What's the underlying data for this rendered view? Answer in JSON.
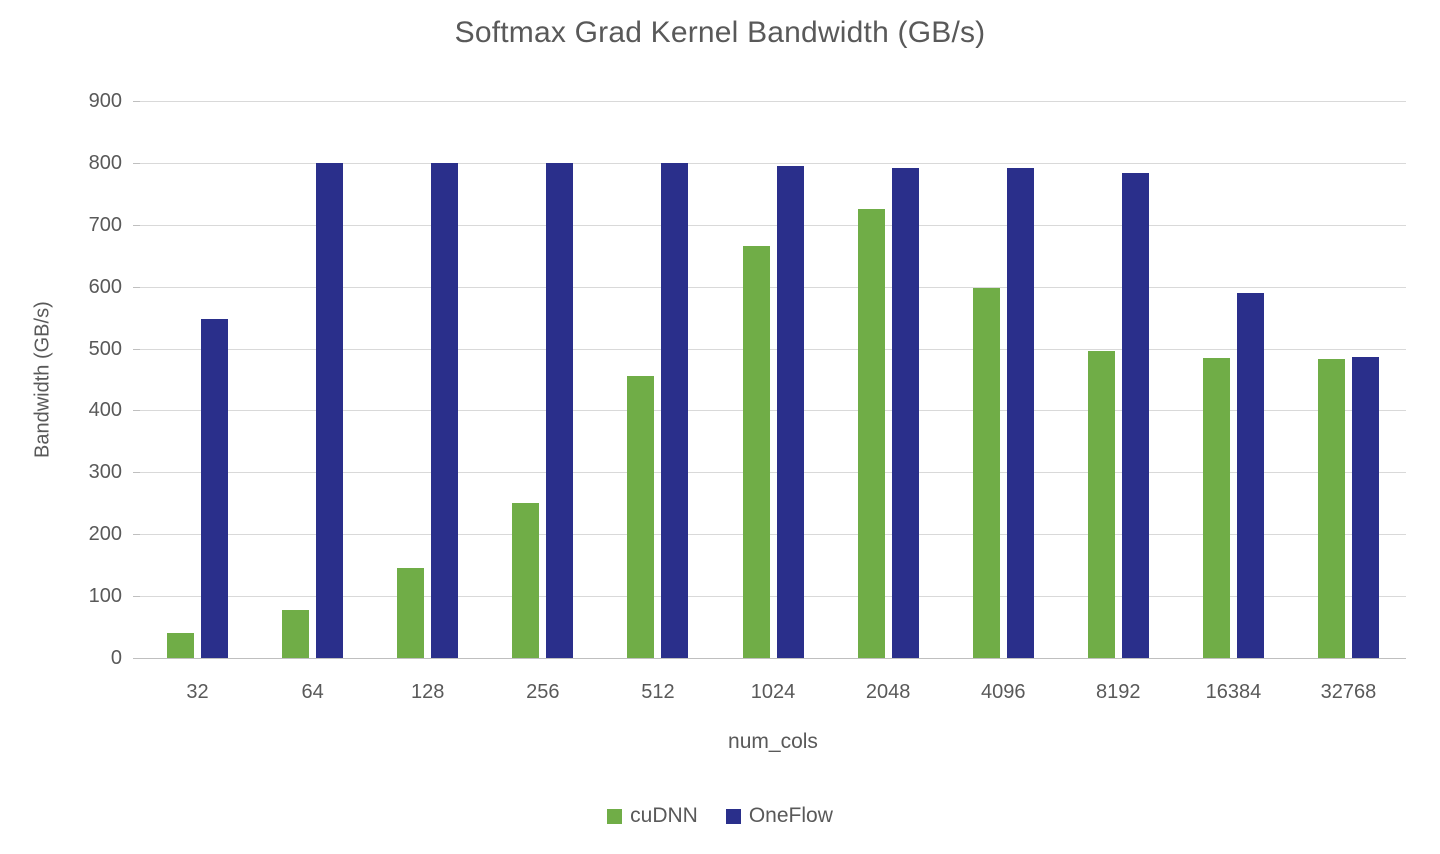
{
  "chart_data": {
    "type": "bar",
    "title": "Softmax Grad Kernel Bandwidth (GB/s)",
    "xlabel": "num_cols",
    "ylabel": "Bandwidth (GB/s)",
    "categories": [
      "32",
      "64",
      "128",
      "256",
      "512",
      "1024",
      "2048",
      "4096",
      "8192",
      "16384",
      "32768"
    ],
    "series": [
      {
        "name": "cuDNN",
        "color": "#70AD47",
        "values": [
          40,
          78,
          145,
          250,
          455,
          665,
          725,
          598,
          496,
          484,
          483
        ]
      },
      {
        "name": "OneFlow",
        "color": "#2A2F8B",
        "values": [
          548,
          800,
          800,
          800,
          800,
          795,
          792,
          792,
          783,
          590,
          487
        ]
      }
    ],
    "ylim": [
      0,
      900
    ],
    "ytick_step": 100,
    "grid": true,
    "legend_position": "bottom",
    "colors": {
      "grid_color": "#D9D9D9",
      "axis_line_color": "#BFBFBF",
      "text_color": "#595959"
    }
  }
}
